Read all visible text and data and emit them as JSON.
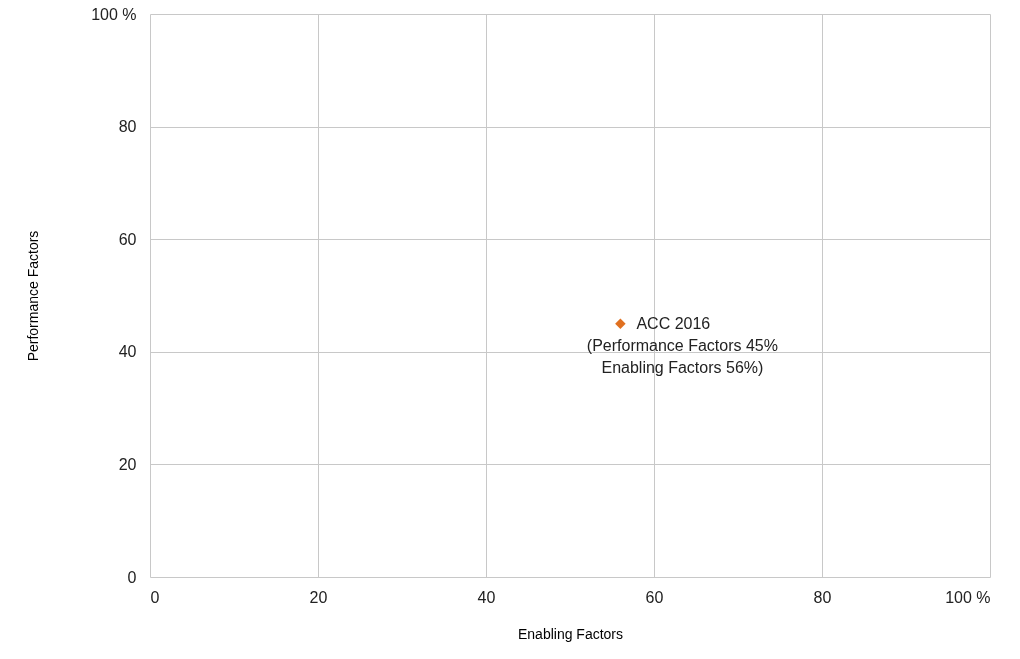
{
  "chart_data": {
    "type": "scatter",
    "xlabel": "Enabling Factors",
    "ylabel": "Performance Factors",
    "series": [
      {
        "name": "ACC 2016",
        "color": "#e07020",
        "x": [
          56
        ],
        "values": [
          45
        ]
      }
    ],
    "annotations": [
      {
        "text": "(Performance Factors 45%\nEnabling Factors 56%)",
        "x": 56,
        "y": 45
      }
    ],
    "xlim": [
      0,
      100
    ],
    "ylim": [
      0,
      100
    ],
    "xticks": [
      0,
      20,
      40,
      60,
      80,
      {
        "value": 100,
        "label": "100 %"
      }
    ],
    "yticks": [
      0,
      20,
      40,
      60,
      80,
      {
        "value": 100,
        "label": "100 %"
      }
    ],
    "grid": true,
    "marker": "diamond"
  }
}
